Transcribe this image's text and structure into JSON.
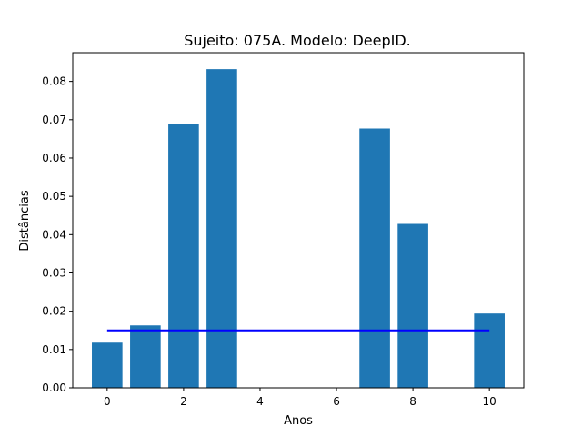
{
  "chart_data": {
    "type": "bar",
    "title": "Sujeito: 075A. Modelo: DeepID.",
    "xlabel": "Anos",
    "ylabel": "Distâncias",
    "xlim": [
      -0.9,
      10.9
    ],
    "ylim": [
      0,
      0.0875
    ],
    "x_ticks": [
      0,
      2,
      4,
      6,
      8,
      10
    ],
    "x_tick_labels": [
      "0",
      "2",
      "4",
      "6",
      "8",
      "10"
    ],
    "y_ticks": [
      0,
      0.01,
      0.02,
      0.03,
      0.04,
      0.05,
      0.06,
      0.07,
      0.08
    ],
    "y_tick_labels": [
      "0.00",
      "0.01",
      "0.02",
      "0.03",
      "0.04",
      "0.05",
      "0.06",
      "0.07",
      "0.08"
    ],
    "grid": false,
    "bar_width": 0.8,
    "bars": [
      {
        "x": 0,
        "value": 0.0118
      },
      {
        "x": 1,
        "value": 0.0163
      },
      {
        "x": 2,
        "value": 0.0688
      },
      {
        "x": 3,
        "value": 0.0832
      },
      {
        "x": 7,
        "value": 0.0677
      },
      {
        "x": 8,
        "value": 0.0428
      },
      {
        "x": 10,
        "value": 0.0194
      }
    ],
    "threshold_line": {
      "x": [
        0,
        10
      ],
      "y": 0.015
    },
    "colors": {
      "bars": "#1f77b4",
      "threshold_line": "#0000ff"
    }
  }
}
